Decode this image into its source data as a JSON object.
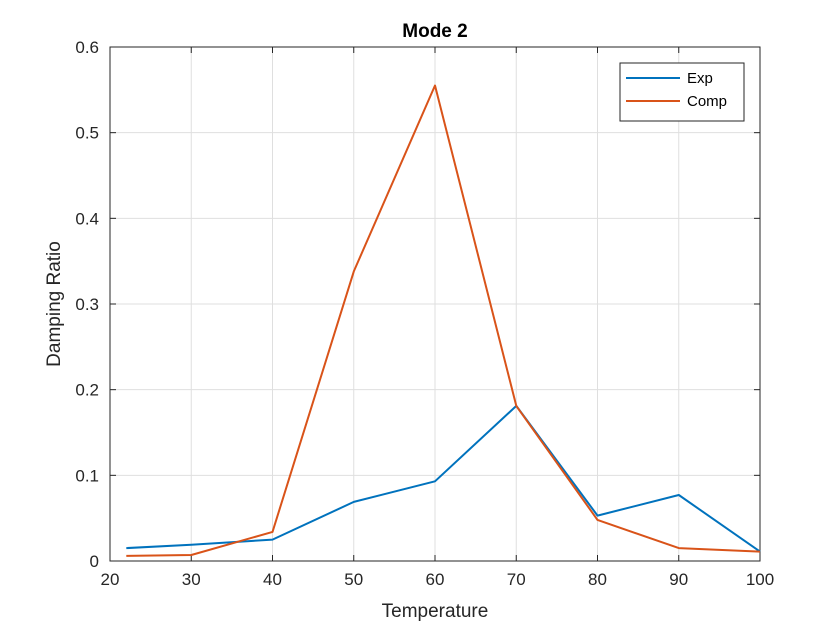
{
  "chart_data": {
    "type": "line",
    "title": "Mode 2",
    "xlabel": "Temperature",
    "ylabel": "Damping Ratio",
    "xlim": [
      20,
      100
    ],
    "ylim": [
      0,
      0.6
    ],
    "xticks": [
      20,
      30,
      40,
      50,
      60,
      70,
      80,
      90,
      100
    ],
    "yticks": [
      0,
      0.1,
      0.2,
      0.3,
      0.4,
      0.5,
      0.6
    ],
    "xtick_labels": [
      "20",
      "30",
      "40",
      "50",
      "60",
      "70",
      "80",
      "90",
      "100"
    ],
    "ytick_labels": [
      "0",
      "0.1",
      "0.2",
      "0.3",
      "0.4",
      "0.5",
      "0.6"
    ],
    "grid": true,
    "legend_position": "top-right",
    "x": [
      22,
      30,
      40,
      50,
      60,
      70,
      80,
      90,
      100
    ],
    "series": [
      {
        "name": "Exp",
        "color": "#0072BD",
        "values": [
          0.015,
          0.019,
          0.025,
          0.069,
          0.093,
          0.181,
          0.053,
          0.077,
          0.011
        ]
      },
      {
        "name": "Comp",
        "color": "#D95319",
        "values": [
          0.006,
          0.007,
          0.034,
          0.338,
          0.555,
          0.181,
          0.048,
          0.015,
          0.011
        ]
      }
    ]
  }
}
